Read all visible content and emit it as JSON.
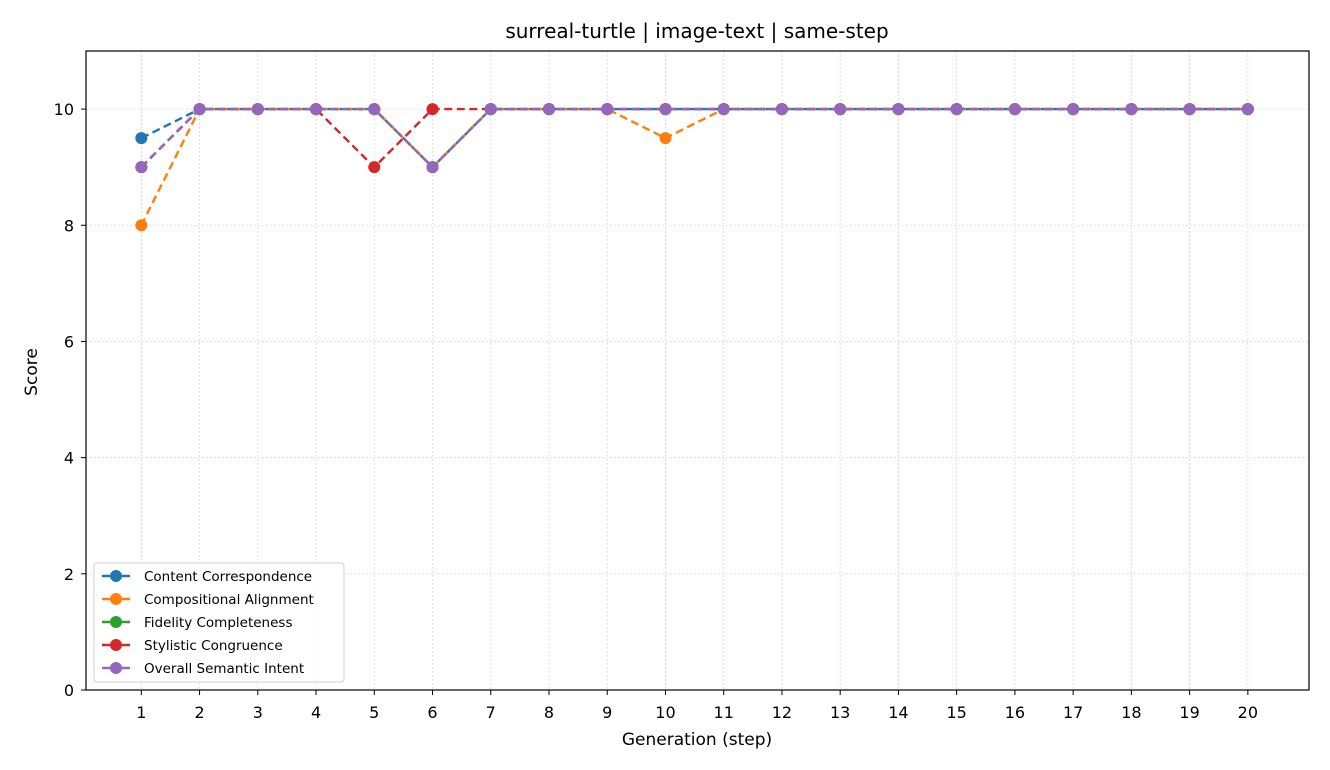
{
  "chart_data": {
    "type": "line",
    "title": "surreal-turtle | image-text | same-step",
    "xlabel": "Generation (step)",
    "ylabel": "Score",
    "x": [
      1,
      2,
      3,
      4,
      5,
      6,
      7,
      8,
      9,
      10,
      11,
      12,
      13,
      14,
      15,
      16,
      17,
      18,
      19,
      20
    ],
    "xlim": [
      0.05,
      21.05
    ],
    "ylim": [
      0,
      11
    ],
    "yticks": [
      0,
      2,
      4,
      6,
      8,
      10
    ],
    "grid": true,
    "legend_position": "lower-left",
    "series": [
      {
        "name": "Content Correspondence",
        "color": "#1f77b4",
        "values": [
          9.5,
          10,
          10,
          10,
          10,
          9,
          10,
          10,
          10,
          10,
          10,
          10,
          10,
          10,
          10,
          10,
          10,
          10,
          10,
          10
        ]
      },
      {
        "name": "Compositional Alignment",
        "color": "#ff7f0e",
        "values": [
          8,
          10,
          10,
          10,
          10,
          9,
          10,
          10,
          10,
          9.5,
          10,
          10,
          10,
          10,
          10,
          10,
          10,
          10,
          10,
          10
        ]
      },
      {
        "name": "Fidelity Completeness",
        "color": "#2ca02c",
        "values": [
          9,
          10,
          10,
          10,
          10,
          9,
          10,
          10,
          10,
          10,
          10,
          10,
          10,
          10,
          10,
          10,
          10,
          10,
          10,
          10
        ]
      },
      {
        "name": "Stylistic Congruence",
        "color": "#d62728",
        "values": [
          9,
          10,
          10,
          10,
          9,
          10,
          10,
          10,
          10,
          10,
          10,
          10,
          10,
          10,
          10,
          10,
          10,
          10,
          10,
          10
        ]
      },
      {
        "name": "Overall Semantic Intent",
        "color": "#9467bd",
        "values": [
          9,
          10,
          10,
          10,
          10,
          9,
          10,
          10,
          10,
          10,
          10,
          10,
          10,
          10,
          10,
          10,
          10,
          10,
          10,
          10
        ]
      }
    ]
  }
}
